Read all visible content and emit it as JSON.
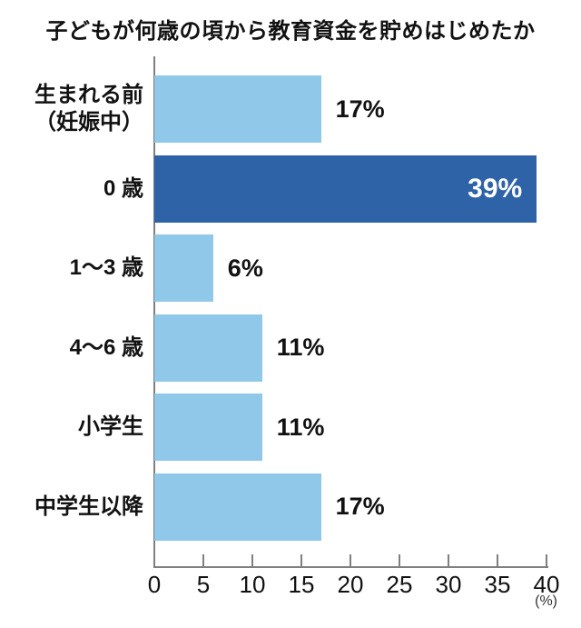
{
  "chart_data": {
    "type": "bar",
    "orientation": "horizontal",
    "title": "子どもが何歳の頃から教育資金を貯めはじめたか",
    "categories": [
      "生まれる前\n（妊娠中）",
      "0 歳",
      "1〜3 歳",
      "4〜6 歳",
      "小学生",
      "中学生以降"
    ],
    "values": [
      17,
      39,
      6,
      11,
      11,
      17
    ],
    "value_labels": [
      "17%",
      "39%",
      "6%",
      "11%",
      "11%",
      "17%"
    ],
    "xlim": [
      0,
      40
    ],
    "x_ticks": [
      0,
      5,
      10,
      15,
      20,
      25,
      30,
      35,
      40
    ],
    "x_unit": "(%)",
    "grid": false,
    "legend": null,
    "highlight_index": 1,
    "colors": {
      "bar_default": "#90C8EA",
      "bar_highlight": "#2E63A8",
      "value_label_default": "#111111",
      "value_label_highlight": "#FFFFFF",
      "axis": "#7F7F7F",
      "text": "#111111"
    }
  }
}
